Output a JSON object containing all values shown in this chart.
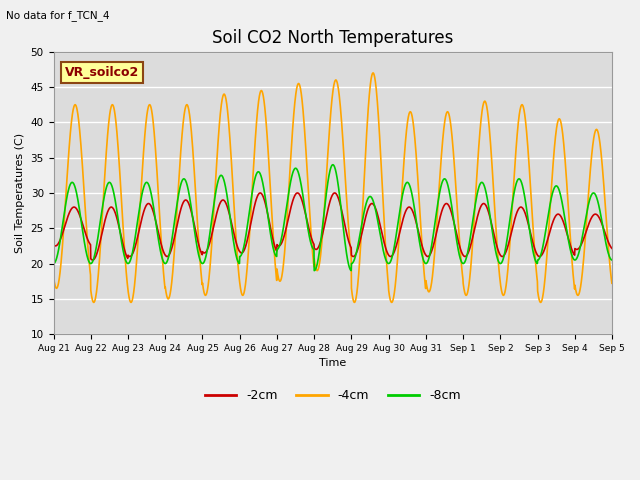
{
  "title": "Soil CO2 North Temperatures",
  "top_left_text": "No data for f_TCN_4",
  "ylabel": "Soil Temperatures (C)",
  "xlabel": "Time",
  "ylim": [
    10,
    50
  ],
  "plot_bg_color": "#dcdcdc",
  "fig_bg_color": "#f0f0f0",
  "series": {
    "2cm": {
      "color": "#cc0000",
      "label": "-2cm",
      "lw": 1.2
    },
    "4cm": {
      "color": "#ffa500",
      "label": "-4cm",
      "lw": 1.2
    },
    "8cm": {
      "color": "#00cc00",
      "label": "-8cm",
      "lw": 1.2
    }
  },
  "legend_box": {
    "text": "VR_soilco2",
    "facecolor": "#ffff99",
    "edgecolor": "#8b4513",
    "textcolor": "#8b0000",
    "fontsize": 9
  },
  "title_fontsize": 12,
  "tick_labels": [
    "Aug 21",
    "Aug 22",
    "Aug 23",
    "Aug 24",
    "Aug 25",
    "Aug 26",
    "Aug 27",
    "Aug 28",
    "Aug 29",
    "Aug 30",
    "Aug 31",
    "Sep 1",
    "Sep 2",
    "Sep 3",
    "Sep 4",
    "Sep 5"
  ],
  "n_days": 15,
  "pts_per_day": 144,
  "orange_peaks": [
    42.5,
    42.5,
    42.5,
    42.5,
    44.0,
    44.5,
    45.5,
    46.0,
    47.0,
    41.5,
    41.5,
    43.0,
    42.5,
    40.5,
    39.0
  ],
  "orange_mins": [
    16.5,
    14.5,
    14.5,
    15.0,
    15.5,
    15.5,
    17.5,
    19.0,
    14.5,
    14.5,
    16.0,
    15.5,
    15.5,
    14.5,
    15.5
  ],
  "red_peaks": [
    28.0,
    28.0,
    28.5,
    29.0,
    29.0,
    30.0,
    30.0,
    30.0,
    28.5,
    28.0,
    28.5,
    28.5,
    28.0,
    27.0,
    27.0
  ],
  "red_mins": [
    22.5,
    20.5,
    21.0,
    21.0,
    21.5,
    21.5,
    22.5,
    22.0,
    21.0,
    21.0,
    21.0,
    21.0,
    21.0,
    21.0,
    22.0
  ],
  "green_peaks": [
    31.5,
    31.5,
    31.5,
    32.0,
    32.5,
    33.0,
    33.5,
    34.0,
    29.5,
    31.5,
    32.0,
    31.5,
    32.0,
    31.0,
    30.0
  ],
  "green_mins": [
    20.0,
    20.0,
    20.0,
    20.0,
    20.0,
    21.0,
    22.0,
    19.0,
    20.0,
    20.0,
    20.0,
    20.0,
    20.0,
    20.5,
    20.5
  ]
}
